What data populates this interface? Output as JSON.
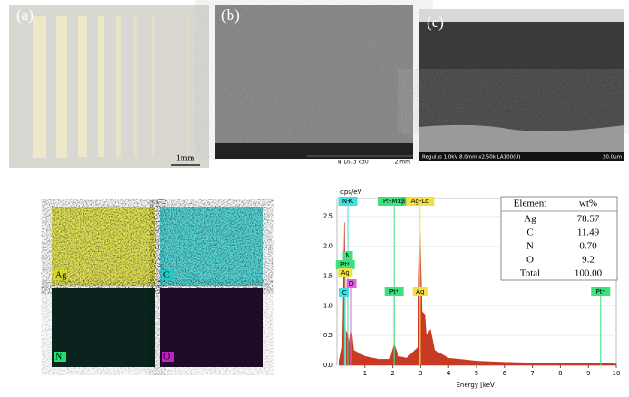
{
  "panels": {
    "a": {
      "label": "(a)",
      "scale": "1mm"
    },
    "b": {
      "label": "(b)",
      "info": "N  D5.3  x30",
      "scale": "2 mm"
    },
    "c": {
      "label": "(c)",
      "info": "Regulus 1.0kV 8.0mm x2.50k LA100(U)",
      "scale": "20.0µm"
    }
  },
  "maps": [
    {
      "label": "Ag",
      "color": "#d8d820"
    },
    {
      "label": "C",
      "color": "#20c8c8"
    },
    {
      "label": "N",
      "color": "#20e070"
    },
    {
      "label": "O",
      "color": "#c020c8"
    }
  ],
  "chart_data": {
    "type": "area",
    "y_label": "cps/eV",
    "x_label": "Energy [keV]",
    "color": "#c01800",
    "x": [
      0.1,
      0.2,
      0.27,
      0.3,
      0.39,
      0.45,
      0.52,
      0.6,
      0.8,
      1.0,
      1.5,
      1.9,
      2.05,
      2.2,
      2.5,
      2.9,
      2.98,
      3.05,
      3.15,
      3.2,
      3.35,
      3.5,
      4.0,
      5.0,
      6.0,
      7.0,
      8.0,
      9.0,
      9.44,
      10.0
    ],
    "values": [
      0.05,
      0.3,
      2.4,
      0.6,
      0.5,
      0.3,
      0.6,
      0.25,
      0.2,
      0.15,
      0.1,
      0.1,
      0.35,
      0.15,
      0.12,
      0.3,
      2.25,
      0.9,
      0.85,
      0.5,
      0.6,
      0.25,
      0.12,
      0.07,
      0.05,
      0.04,
      0.03,
      0.03,
      0.04,
      0.02
    ],
    "xlim": [
      0,
      10
    ],
    "xticks": [
      1,
      2,
      3,
      4,
      5,
      6,
      7,
      8,
      9,
      10
    ],
    "ylim": [
      0,
      2.8
    ],
    "yticks": [
      {
        "value": 0,
        "label": "0.0"
      },
      0.5,
      {
        "value": 1,
        "label": "1.0"
      },
      1.5,
      {
        "value": 2,
        "label": "2.0"
      },
      2.5
    ],
    "peak_labels": [
      {
        "label": "N-K",
        "x": 0.39,
        "color": "#40e0e0"
      },
      {
        "label": "Pt-Mαβ",
        "x": 2.05,
        "color": "#40e080"
      },
      {
        "label": "Ag-Lα",
        "x": 2.98,
        "color": "#f0e040"
      },
      {
        "label": "N",
        "x": 0.39,
        "color": "#40e080"
      },
      {
        "label": "Pt*",
        "x": 0.3,
        "color": "#40e080"
      },
      {
        "label": "Ag",
        "x": 0.3,
        "color": "#f0e040"
      },
      {
        "label": "O",
        "x": 0.52,
        "color": "#e060e0"
      },
      {
        "label": "C",
        "x": 0.27,
        "color": "#40e0e0"
      },
      {
        "label": "Pt*",
        "x": 2.05,
        "color": "#40e080"
      },
      {
        "label": "Ag",
        "x": 2.98,
        "color": "#f0e040"
      },
      {
        "label": "Pt*",
        "x": 9.44,
        "color": "#40e080"
      }
    ],
    "table": {
      "header": [
        "Element",
        "wt%"
      ],
      "rows": [
        [
          "Ag",
          "78.57"
        ],
        [
          "C",
          "11.49"
        ],
        [
          "N",
          "0.70"
        ],
        [
          "O",
          "9.2"
        ],
        [
          "Total",
          "100.00"
        ]
      ]
    }
  }
}
